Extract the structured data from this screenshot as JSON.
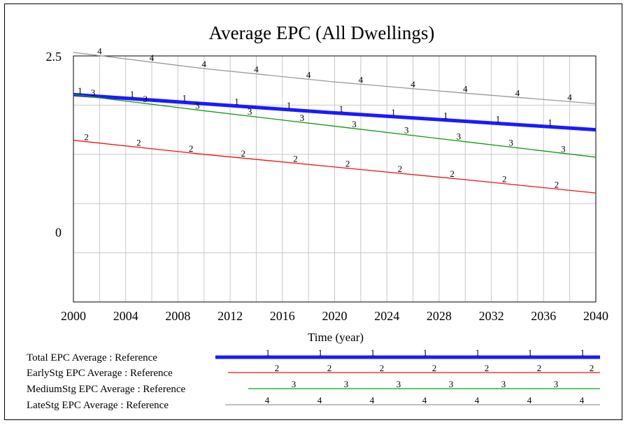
{
  "chart_data": {
    "type": "line",
    "title": "Average EPC (All Dwellings)",
    "xlabel": "Time (year)",
    "ylabel": "",
    "xlim": [
      2000,
      2040
    ],
    "ylim": [
      -1,
      2.5
    ],
    "x_ticks": [
      2000,
      2004,
      2008,
      2012,
      2016,
      2020,
      2024,
      2028,
      2032,
      2036,
      2040
    ],
    "x_tick_labels": [
      "2000",
      "2004",
      "2008",
      "2012",
      "2016",
      "2020",
      "2024",
      "2028",
      "2032",
      "2036",
      "2040"
    ],
    "y_ticks": [
      2.5,
      0
    ],
    "y_tick_labels": [
      "2.5",
      "0"
    ],
    "grid": true,
    "legend_position": "bottom",
    "series": [
      {
        "name": "Total EPC Average : Reference",
        "marker": "1",
        "color": "#1a1aff",
        "x": [
          2000,
          2010,
          2020,
          2030,
          2040
        ],
        "y": [
          1.95,
          1.82,
          1.69,
          1.57,
          1.45
        ]
      },
      {
        "name": "EarlyStg EPC Average : Reference",
        "marker": "2",
        "color": "#ee1111",
        "x": [
          2000,
          2010,
          2020,
          2030,
          2040
        ],
        "y": [
          1.3,
          1.1,
          0.92,
          0.74,
          0.55
        ]
      },
      {
        "name": "MediumStg EPC Average : Reference",
        "marker": "3",
        "color": "#119911",
        "x": [
          2000,
          2010,
          2020,
          2030,
          2040
        ],
        "y": [
          1.95,
          1.72,
          1.5,
          1.28,
          1.06
        ]
      },
      {
        "name": "LateStg EPC Average : Reference",
        "marker": "4",
        "color": "#999999",
        "x": [
          2000,
          2010,
          2020,
          2030,
          2040
        ],
        "y": [
          2.55,
          2.32,
          2.13,
          1.97,
          1.82
        ]
      }
    ]
  }
}
